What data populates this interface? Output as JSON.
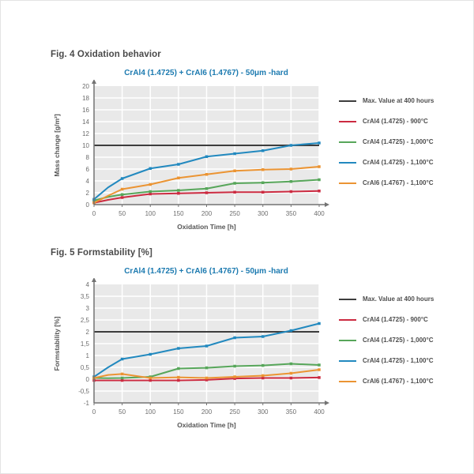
{
  "figures": [
    {
      "heading": "Fig. 4 Oxidation behavior"
    },
    {
      "heading": "Fig. 5 Formstability [%]"
    }
  ],
  "chart_data": [
    {
      "type": "line",
      "title": "CrAl4 (1.4725) + CrAl6 (1.4767) - 50μm -hard",
      "xlabel": "Oxidation Time [h]",
      "ylabel": "Mass change [g/m²]",
      "xlim": [
        0,
        400
      ],
      "ylim": [
        0,
        20
      ],
      "xticks": [
        0,
        50,
        100,
        150,
        200,
        250,
        300,
        350,
        400
      ],
      "xtick_labels": [
        "0",
        "50",
        "100",
        "150",
        "200",
        "250",
        "300",
        "350",
        "400"
      ],
      "yticks": [
        0,
        2,
        4,
        6,
        8,
        10,
        12,
        14,
        16,
        18,
        20
      ],
      "ytick_labels": [
        "0",
        "2",
        "4",
        "6",
        "8",
        "10",
        "12",
        "14",
        "16",
        "18",
        "20"
      ],
      "grid": true,
      "plot_bg": "#e9e9e9",
      "axis_color": "#737373",
      "max_line": {
        "label": "Max. Value at 400 hours",
        "value": 10,
        "color": "#3d3d3d"
      },
      "x": [
        0,
        25,
        50,
        100,
        150,
        200,
        250,
        300,
        350,
        400
      ],
      "series": [
        {
          "name": "CrAl4 (1.4725) - 900°C",
          "color": "#cc2b41",
          "values": [
            0.3,
            0.8,
            1.2,
            1.8,
            1.9,
            2.0,
            2.1,
            2.1,
            2.2,
            2.3
          ]
        },
        {
          "name": "CrAl4 (1.4725) - 1,000°C",
          "color": "#57a65a",
          "values": [
            0.7,
            1.3,
            1.7,
            2.2,
            2.4,
            2.7,
            3.6,
            3.7,
            3.9,
            4.2
          ]
        },
        {
          "name": "CrAl4 (1.4725) - 1,100°C",
          "color": "#2289bf",
          "values": [
            0.9,
            2.9,
            4.4,
            6.1,
            6.8,
            8.1,
            8.6,
            9.1,
            10.0,
            10.4
          ]
        },
        {
          "name": "CrAl6 (1.4767) - 1,100°C",
          "color": "#eb9433",
          "values": [
            0.3,
            1.5,
            2.6,
            3.4,
            4.5,
            5.1,
            5.7,
            5.9,
            6.0,
            6.4
          ]
        }
      ],
      "legend_position": "right"
    },
    {
      "type": "line",
      "title": "CrAl4 (1.4725) + CrAl6 (1.4767) - 50μm -hard",
      "xlabel": "Oxidation Time [h]",
      "ylabel": "Formstability [%]",
      "xlim": [
        0,
        400
      ],
      "ylim": [
        -1,
        4
      ],
      "xticks": [
        0,
        50,
        100,
        150,
        200,
        250,
        300,
        350,
        400
      ],
      "xtick_labels": [
        "0",
        "50",
        "100",
        "150",
        "200",
        "250",
        "300",
        "350",
        "400"
      ],
      "yticks": [
        -1,
        -0.5,
        0,
        0.5,
        1,
        1.5,
        2,
        2.5,
        3,
        3.5,
        4
      ],
      "ytick_labels": [
        "-1",
        "-0,5",
        "0",
        "0,5",
        "1",
        "1,5",
        "2",
        "2,5",
        "3",
        "3,5",
        "4"
      ],
      "grid": true,
      "plot_bg": "#e9e9e9",
      "axis_color": "#737373",
      "max_line": {
        "label": "Max. Value at 400 hours",
        "value": 2,
        "color": "#3d3d3d"
      },
      "x": [
        0,
        25,
        50,
        100,
        150,
        200,
        250,
        300,
        350,
        400
      ],
      "series": [
        {
          "name": "CrAl4 (1.4725) - 900°C",
          "color": "#cc2b41",
          "values": [
            -0.05,
            -0.05,
            -0.05,
            -0.05,
            -0.05,
            -0.03,
            0.03,
            0.05,
            0.05,
            0.07
          ]
        },
        {
          "name": "CrAl4 (1.4725) - 1,000°C",
          "color": "#57a65a",
          "values": [
            0.05,
            0.04,
            0.05,
            0.1,
            0.45,
            0.48,
            0.55,
            0.58,
            0.65,
            0.6
          ]
        },
        {
          "name": "CrAl4 (1.4725) - 1,100°C",
          "color": "#2289bf",
          "values": [
            0.1,
            0.5,
            0.85,
            1.05,
            1.3,
            1.4,
            1.75,
            1.8,
            2.05,
            2.35
          ]
        },
        {
          "name": "CrAl6 (1.4767) - 1,100°C",
          "color": "#eb9433",
          "values": [
            0.05,
            0.18,
            0.22,
            0.05,
            0.08,
            0.05,
            0.1,
            0.15,
            0.25,
            0.4
          ]
        }
      ],
      "legend_position": "right"
    }
  ]
}
